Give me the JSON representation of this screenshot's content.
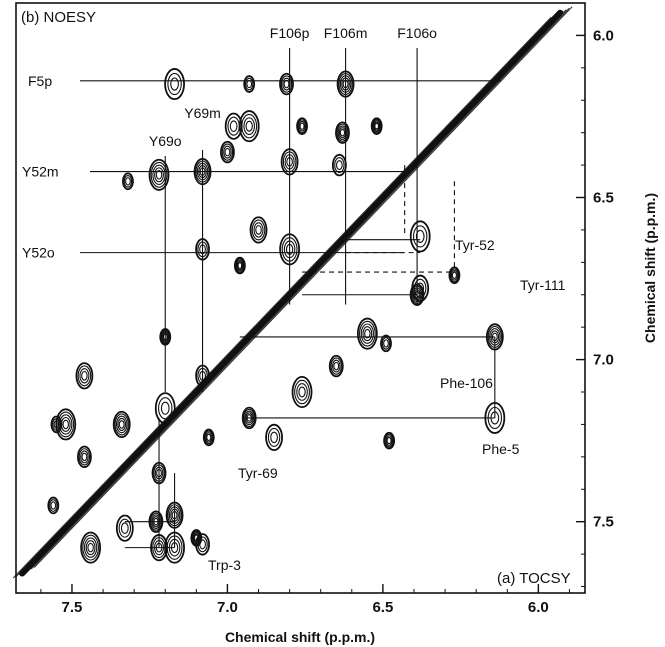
{
  "chart_data": {
    "type": "contour",
    "panels": {
      "top_left": "(b) NOESY",
      "bottom_right": "(a) TOCSY"
    },
    "xlabel": "Chemical shift (p.p.m.)",
    "ylabel": "Chemical shift (p.p.m.)",
    "xlim": [
      7.68,
      5.85
    ],
    "ylim": [
      5.9,
      7.72
    ],
    "x_ticks": [
      7.5,
      7.0,
      6.5,
      6.0
    ],
    "x_tick_labels": [
      "7.5",
      "7.0",
      "6.5",
      "6.0"
    ],
    "y_ticks": [
      6.0,
      6.5,
      7.0,
      7.5
    ],
    "y_tick_labels": [
      "6.0",
      "6.5",
      "7.0",
      "7.5"
    ],
    "diagonal": true,
    "noesy_labels": [
      {
        "text": "F106p",
        "x": 6.8
      },
      {
        "text": "F106m",
        "x": 6.62
      },
      {
        "text": "F106o",
        "x": 6.39
      },
      {
        "text": "F5p",
        "y": 6.14
      },
      {
        "text": "Y69m",
        "x": 7.08
      },
      {
        "text": "Y69o",
        "x": 7.2
      },
      {
        "text": "Y52m",
        "y": 6.42
      },
      {
        "text": "Y52o",
        "y": 6.67
      }
    ],
    "tocsy_labels": [
      "Tyr-52",
      "Tyr-111",
      "Phe-106",
      "Phe-5",
      "Tyr-69",
      "Trp-3"
    ],
    "cross_peaks": [
      {
        "x": 6.93,
        "y": 6.15
      },
      {
        "x": 6.81,
        "y": 6.15
      },
      {
        "x": 6.62,
        "y": 6.15
      },
      {
        "x": 7.17,
        "y": 6.15
      },
      {
        "x": 6.76,
        "y": 6.28
      },
      {
        "x": 6.63,
        "y": 6.3
      },
      {
        "x": 6.98,
        "y": 6.28
      },
      {
        "x": 6.93,
        "y": 6.28
      },
      {
        "x": 6.52,
        "y": 6.28
      },
      {
        "x": 6.64,
        "y": 6.4
      },
      {
        "x": 6.8,
        "y": 6.39
      },
      {
        "x": 7.22,
        "y": 6.43
      },
      {
        "x": 7.32,
        "y": 6.45
      },
      {
        "x": 7.0,
        "y": 6.36
      },
      {
        "x": 7.08,
        "y": 6.42
      },
      {
        "x": 6.38,
        "y": 6.62
      },
      {
        "x": 6.27,
        "y": 6.74
      },
      {
        "x": 6.39,
        "y": 6.8
      },
      {
        "x": 6.38,
        "y": 6.78
      },
      {
        "x": 6.8,
        "y": 6.66
      },
      {
        "x": 6.96,
        "y": 6.71
      },
      {
        "x": 7.08,
        "y": 6.66
      },
      {
        "x": 6.9,
        "y": 6.6
      },
      {
        "x": 6.55,
        "y": 6.92
      },
      {
        "x": 6.49,
        "y": 6.95
      },
      {
        "x": 6.65,
        "y": 7.02
      },
      {
        "x": 6.14,
        "y": 6.93
      },
      {
        "x": 6.14,
        "y": 7.18
      },
      {
        "x": 6.48,
        "y": 7.25
      },
      {
        "x": 6.93,
        "y": 7.18
      },
      {
        "x": 6.85,
        "y": 7.24
      },
      {
        "x": 6.76,
        "y": 7.1
      },
      {
        "x": 7.2,
        "y": 6.93
      },
      {
        "x": 7.08,
        "y": 7.05
      },
      {
        "x": 7.46,
        "y": 7.05
      },
      {
        "x": 7.52,
        "y": 7.2
      },
      {
        "x": 7.55,
        "y": 7.2
      },
      {
        "x": 7.46,
        "y": 7.3
      },
      {
        "x": 7.34,
        "y": 7.2
      },
      {
        "x": 7.2,
        "y": 7.15
      },
      {
        "x": 7.06,
        "y": 7.24
      },
      {
        "x": 7.23,
        "y": 7.5
      },
      {
        "x": 7.33,
        "y": 7.52
      },
      {
        "x": 7.17,
        "y": 7.58
      },
      {
        "x": 7.1,
        "y": 7.55
      },
      {
        "x": 7.08,
        "y": 7.57
      },
      {
        "x": 7.22,
        "y": 7.58
      },
      {
        "x": 7.44,
        "y": 7.58
      },
      {
        "x": 7.56,
        "y": 7.45
      },
      {
        "x": 7.22,
        "y": 7.35
      },
      {
        "x": 7.17,
        "y": 7.48
      }
    ]
  }
}
